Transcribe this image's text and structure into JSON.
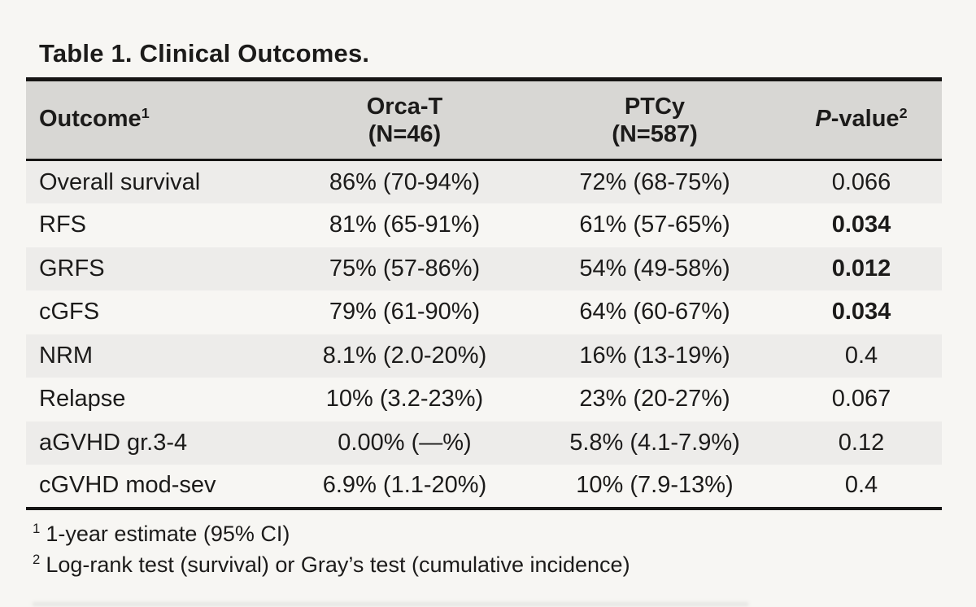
{
  "title": "Table 1. Clinical Outcomes.",
  "colors": {
    "page_bg": "#f7f6f3",
    "header_bg": "#d8d7d4",
    "stripe_bg": "#edecea",
    "border": "#161514",
    "text": "#1c1b1a"
  },
  "table": {
    "header": {
      "outcome": {
        "label": "Outcome",
        "sup": "1"
      },
      "orca": {
        "line1": "Orca-T",
        "line2": "(N=46)"
      },
      "ptcy": {
        "line1": "PTCy",
        "line2": "(N=587)"
      },
      "pvalue": {
        "italic": "P",
        "label": "-value",
        "sup": "2"
      }
    },
    "rows": [
      {
        "outcome": "Overall survival",
        "orca": "86% (70-94%)",
        "ptcy": "72% (68-75%)",
        "p": "0.066",
        "p_bold": false
      },
      {
        "outcome": "RFS",
        "orca": "81% (65-91%)",
        "ptcy": "61% (57-65%)",
        "p": "0.034",
        "p_bold": true
      },
      {
        "outcome": "GRFS",
        "orca": "75% (57-86%)",
        "ptcy": "54% (49-58%)",
        "p": "0.012",
        "p_bold": true
      },
      {
        "outcome": "cGFS",
        "orca": "79% (61-90%)",
        "ptcy": "64% (60-67%)",
        "p": "0.034",
        "p_bold": true
      },
      {
        "outcome": "NRM",
        "orca": "8.1% (2.0-20%)",
        "ptcy": "16% (13-19%)",
        "p": "0.4",
        "p_bold": false
      },
      {
        "outcome": "Relapse",
        "orca": "10% (3.2-23%)",
        "ptcy": "23% (20-27%)",
        "p": "0.067",
        "p_bold": false
      },
      {
        "outcome": "aGVHD gr.3-4",
        "orca": "0.00% (—%)",
        "ptcy": "5.8% (4.1-7.9%)",
        "p": "0.12",
        "p_bold": false
      },
      {
        "outcome": "cGVHD mod-sev",
        "orca": "6.9% (1.1-20%)",
        "ptcy": "10% (7.9-13%)",
        "p": "0.4",
        "p_bold": false
      }
    ]
  },
  "footnotes": [
    {
      "sup": "1",
      "text": "1-year estimate (95% CI)"
    },
    {
      "sup": "2",
      "text": "Log-rank test (survival) or Gray’s test (cumulative incidence)"
    }
  ]
}
